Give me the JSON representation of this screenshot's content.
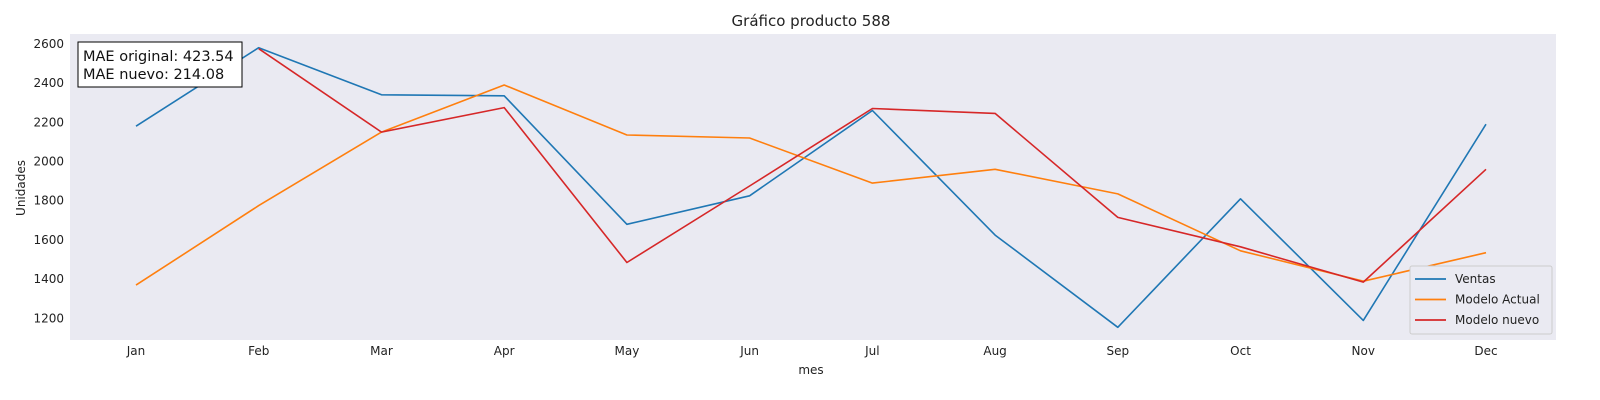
{
  "chart_data": {
    "type": "line",
    "title": "Gráfico producto 588",
    "xlabel": "mes",
    "ylabel": "Unidades",
    "categories": [
      "Jan",
      "Feb",
      "Mar",
      "Apr",
      "May",
      "Jun",
      "Jul",
      "Aug",
      "Sep",
      "Oct",
      "Nov",
      "Dec"
    ],
    "y_ticks": [
      1200,
      1400,
      1600,
      1800,
      2000,
      2200,
      2400,
      2600
    ],
    "ylim": [
      1090,
      2650
    ],
    "grid": false,
    "legend_position": "lower-right",
    "series": [
      {
        "name": "Ventas",
        "color": "#1f77b4",
        "values": [
          2180,
          2580,
          2340,
          2335,
          1680,
          1825,
          2260,
          1625,
          1155,
          1810,
          1190,
          2190
        ]
      },
      {
        "name": "Modelo Actual",
        "color": "#ff7f0e",
        "values": [
          1370,
          1775,
          2150,
          2390,
          2135,
          2120,
          1890,
          1960,
          1835,
          1545,
          1390,
          1535
        ]
      },
      {
        "name": "Modelo nuevo",
        "color": "#d62728",
        "values": [
          null,
          2575,
          2150,
          2275,
          1485,
          1875,
          2270,
          2245,
          1715,
          1565,
          1385,
          1960
        ]
      }
    ],
    "annotation": {
      "line1": "MAE original: 423.54",
      "line2": "MAE nuevo: 214.08"
    }
  }
}
